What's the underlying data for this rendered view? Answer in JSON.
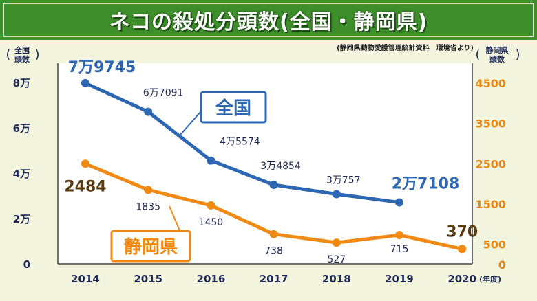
{
  "title": "ネコの殺処分頭数(全国・静岡県)",
  "source": "(静岡県動物愛護管理統計資料　環境省より)",
  "chart_data": {
    "type": "line",
    "categories": [
      "2014",
      "2015",
      "2016",
      "2017",
      "2018",
      "2019",
      "2020"
    ],
    "x_unit": "(年度)",
    "left_axis": {
      "label_lines": [
        "全国",
        "頭数"
      ],
      "range": [
        0,
        80000
      ],
      "ticks": [
        {
          "value": 0,
          "label": "0"
        },
        {
          "value": 20000,
          "label": "2万"
        },
        {
          "value": 40000,
          "label": "4万"
        },
        {
          "value": 60000,
          "label": "6万"
        },
        {
          "value": 80000,
          "label": "8万"
        }
      ]
    },
    "right_axis": {
      "label_lines": [
        "静岡県",
        "頭数"
      ],
      "range": [
        0,
        4500
      ],
      "ticks": [
        {
          "value": 0,
          "label": "0"
        },
        {
          "value": 500,
          "label": "500"
        },
        {
          "value": 1500,
          "label": "1500"
        },
        {
          "value": 2500,
          "label": "2500"
        },
        {
          "value": 3500,
          "label": "3500"
        },
        {
          "value": 4500,
          "label": "4500"
        }
      ]
    },
    "series": [
      {
        "name": "全国",
        "axis": "left",
        "color": "#2e67b1",
        "values": [
          79745,
          67091,
          45574,
          34854,
          30757,
          27108,
          null
        ],
        "labels": [
          "7万9745",
          "6万7091",
          "4万5574",
          "3万4854",
          "3万757",
          "2万7108",
          null
        ]
      },
      {
        "name": "静岡県",
        "axis": "right",
        "color": "#f08a14",
        "values": [
          2484,
          1835,
          1450,
          738,
          527,
          715,
          370
        ],
        "labels": [
          "2484",
          "1835",
          "1450",
          "738",
          "527",
          "715",
          "370"
        ]
      }
    ],
    "grid": false
  }
}
